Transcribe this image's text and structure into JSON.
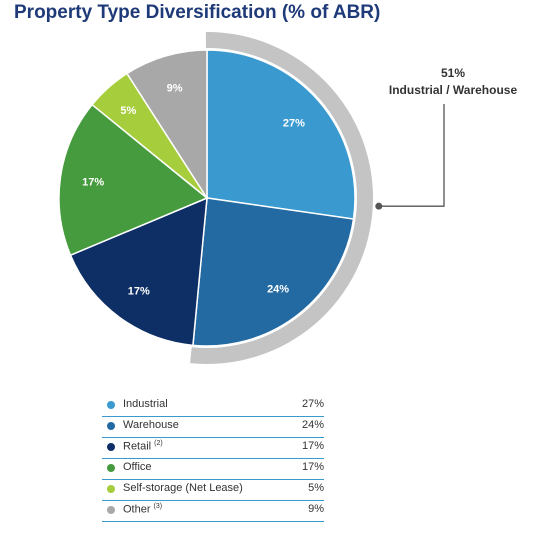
{
  "colors": {
    "title": "#1f3a78",
    "arc": "#c4c4c4",
    "callout_line": "#555555",
    "legend_rule": "#3a9ad0"
  },
  "chart_data": {
    "type": "pie",
    "title": "Property Type Diversification (% of ABR)",
    "unit": "%",
    "slices": [
      {
        "label": "Industrial",
        "sup": "",
        "value": 27,
        "display": "27%",
        "color": "#3a9ad0"
      },
      {
        "label": "Warehouse",
        "sup": "",
        "value": 24,
        "display": "24%",
        "color": "#236aa3"
      },
      {
        "label": "Retail",
        "sup": "(2)",
        "value": 17,
        "display": "17%",
        "color": "#0e2f66"
      },
      {
        "label": "Office",
        "sup": "",
        "value": 17,
        "display": "17%",
        "color": "#459b3d"
      },
      {
        "label": "Self-storage (Net Lease)",
        "sup": "",
        "value": 5,
        "display": "5%",
        "color": "#a6cd3c"
      },
      {
        "label": "Other",
        "sup": "(3)",
        "value": 9,
        "display": "9%",
        "color": "#a8a8a8"
      }
    ],
    "callout": {
      "value": "51%",
      "label": "Industrial / Warehouse",
      "covers": [
        "Industrial",
        "Warehouse"
      ]
    }
  }
}
